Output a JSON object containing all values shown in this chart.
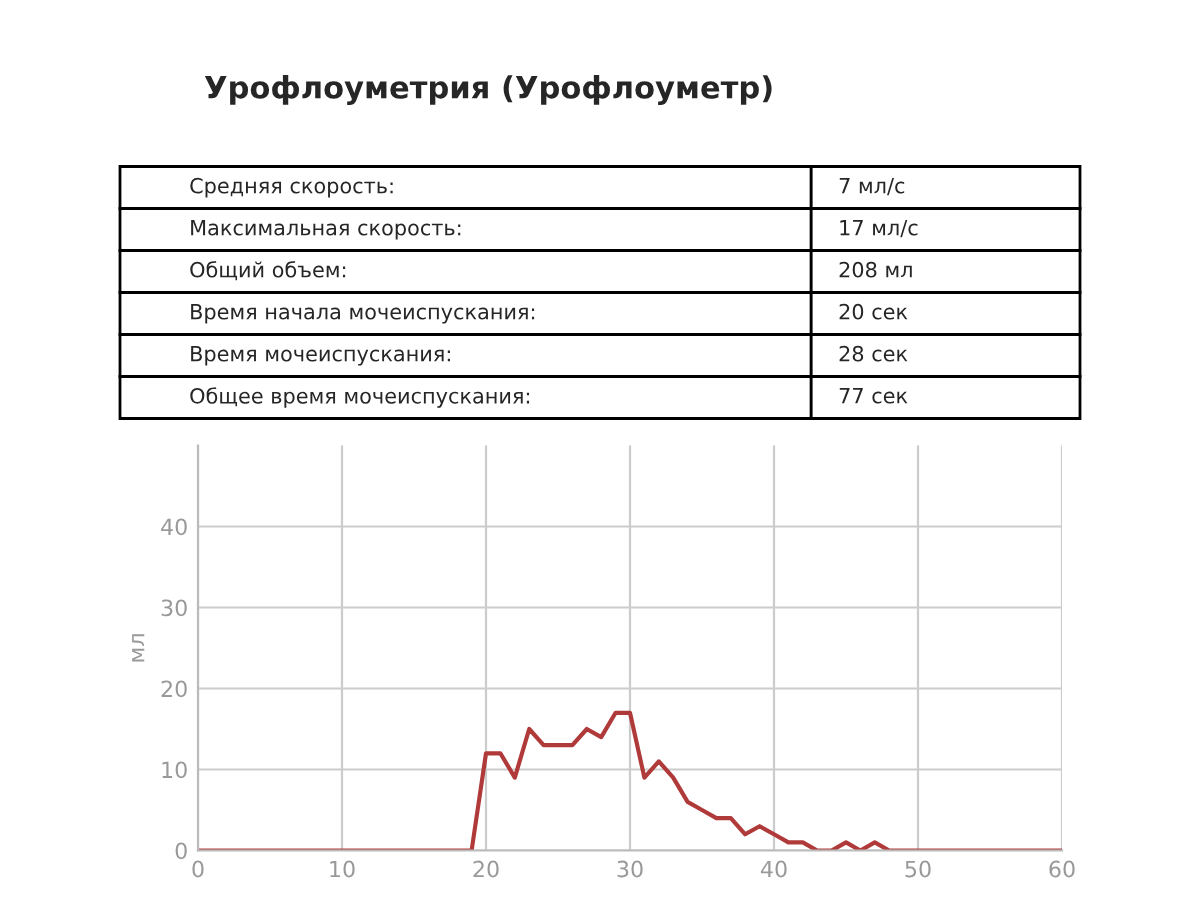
{
  "chart_data": {
    "type": "line",
    "title": "Урофлоуметрия (Урофлоуметр)",
    "ylabel": "мл",
    "annotations": [
      "Средняя скорость:",
      "7 мл/с",
      "Максимальная скорость:",
      "17 мл/с",
      "Общий объем:",
      "208 мл",
      "Время начала мочеиспускания:",
      "20 сек",
      "Время мочеиспускания:",
      "28 сек",
      "Общее время мочеиспускания:",
      "77 сек"
    ],
    "x": [
      0,
      19,
      20,
      21,
      22,
      23,
      24,
      25,
      26,
      27,
      28,
      29,
      30,
      31,
      32,
      33,
      34,
      35,
      36,
      37,
      38,
      39,
      40,
      41,
      42,
      43,
      44,
      45,
      46,
      47,
      48,
      60
    ],
    "series": [
      {
        "color": "#b03a3a",
        "values": [
          0,
          0,
          12,
          12,
          9,
          15,
          13,
          13,
          13,
          15,
          14,
          17,
          17,
          9,
          11,
          9,
          6,
          5,
          4,
          4,
          2,
          3,
          2,
          1,
          1,
          0,
          0,
          1,
          0,
          1,
          0,
          0
        ]
      }
    ],
    "xlim": [
      0,
      60
    ],
    "ylim": [
      0,
      50
    ],
    "xticks": [
      0,
      10,
      20,
      30,
      40,
      50,
      60
    ],
    "yticks": [
      0,
      10,
      20,
      30,
      40
    ],
    "grid": true,
    "legend": false,
    "marker": "none",
    "line_style": "solid"
  }
}
